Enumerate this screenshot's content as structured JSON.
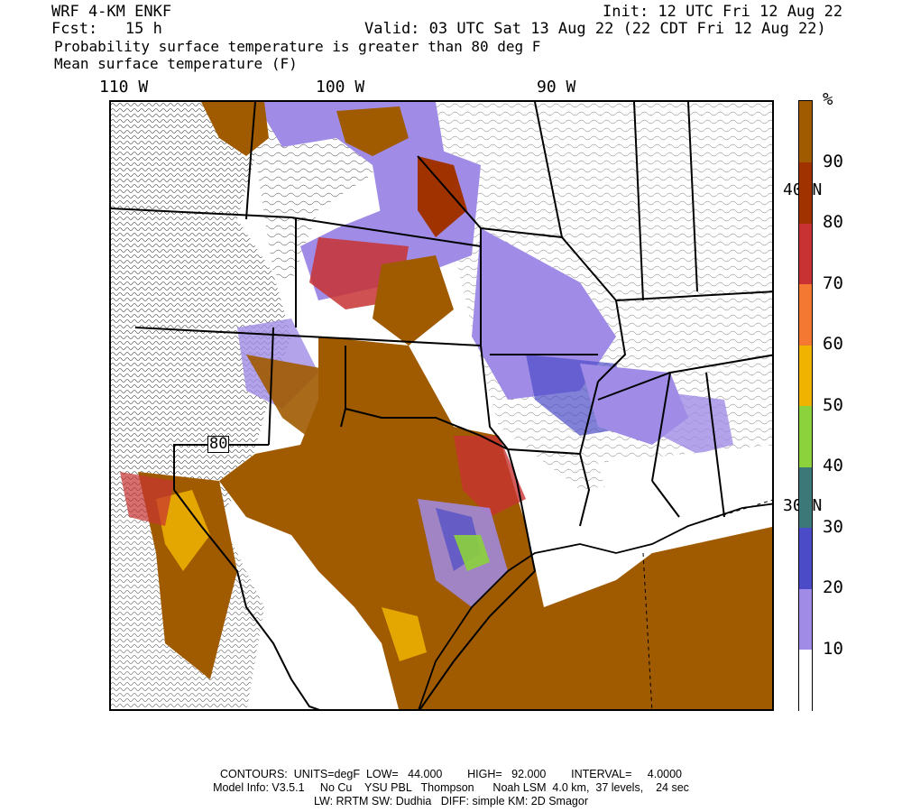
{
  "header": {
    "model": "WRF 4-KM ENKF",
    "init": "Init: 12 UTC Fri 12 Aug 22",
    "fcst": "Fcst:   15 h",
    "valid": "Valid: 03 UTC Sat 13 Aug 22 (22 CDT Fri 12 Aug 22)",
    "line3": "Probability surface temperature is greater than 80 deg F",
    "line4": "Mean surface temperature (F)"
  },
  "longitude_labels": [
    "110 W",
    "100 W",
    "90 W"
  ],
  "latitude_labels": [
    "40 N",
    "30 N"
  ],
  "contour_label": "80",
  "colorbar": {
    "unit": "%",
    "levels": [
      "10",
      "20",
      "30",
      "40",
      "50",
      "60",
      "70",
      "80",
      "90"
    ],
    "colors": [
      "#ffffff",
      "#a08ce6",
      "#4b4bc8",
      "#3c7878",
      "#8cd23c",
      "#f0b400",
      "#f57832",
      "#c83232",
      "#a03200",
      "#a05a00"
    ]
  },
  "footer": {
    "line1": "CONTOURS:  UNITS=degF  LOW=   44.000        HIGH=   92.000        INTERVAL=     4.0000",
    "line2": "Model Info: V3.5.1     No Cu    YSU PBL   Thompson      Noah LSM  4.0 km,  37 levels,    24 sec",
    "line3": "LW: RRTM SW: Dudhia   DIFF: simple KM: 2D Smagor"
  }
}
